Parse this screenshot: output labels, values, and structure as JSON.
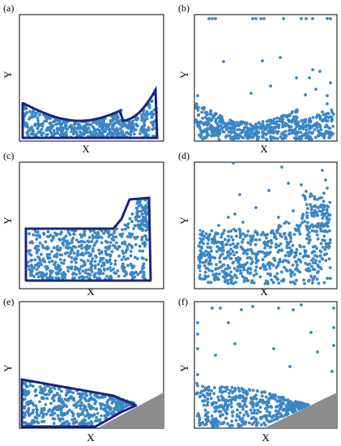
{
  "figure": {
    "panels": [
      {
        "label": "(a)",
        "xlabel": "X",
        "ylabel": "Y"
      },
      {
        "label": "(b)",
        "xlabel": "X",
        "ylabel": "Y"
      },
      {
        "label": "(c)",
        "xlabel": "X",
        "ylabel": "Y"
      },
      {
        "label": "(d)",
        "xlabel": "X",
        "ylabel": "Y"
      },
      {
        "label": "(e)",
        "xlabel": "X",
        "ylabel": "Y"
      },
      {
        "label": "(f)",
        "xlabel": "X",
        "ylabel": "Y"
      }
    ]
  },
  "chart_data": [
    {
      "type": "scatter",
      "title": "",
      "label": "(a)",
      "xlabel": "X",
      "ylabel": "Y",
      "xlim": [
        0,
        1
      ],
      "ylim": [
        0,
        1
      ],
      "description_free": true,
      "scene": "sloshing",
      "colors": {
        "fluid": "#3b86c4",
        "boundary": "#1a237e"
      }
    },
    {
      "type": "scatter",
      "title": "",
      "label": "(b)",
      "xlabel": "X",
      "ylabel": "Y",
      "xlim": [
        0,
        1
      ],
      "ylim": [
        0,
        1
      ],
      "scene": "sloshing_splash",
      "colors": {
        "fluid": "#3b86c4"
      }
    },
    {
      "type": "scatter",
      "title": "",
      "label": "(c)",
      "xlabel": "X",
      "ylabel": "Y",
      "xlim": [
        0,
        1
      ],
      "ylim": [
        0,
        1
      ],
      "scene": "wall_impact",
      "colors": {
        "fluid": "#3b86c4",
        "boundary": "#1a237e"
      }
    },
    {
      "type": "scatter",
      "title": "",
      "label": "(d)",
      "xlabel": "X",
      "ylabel": "Y",
      "xlim": [
        0,
        1
      ],
      "ylim": [
        0,
        1
      ],
      "scene": "wall_impact_splash",
      "colors": {
        "fluid": "#3b86c4"
      }
    },
    {
      "type": "scatter",
      "title": "",
      "label": "(e)",
      "xlabel": "X",
      "ylabel": "Y",
      "xlim": [
        0,
        1
      ],
      "ylim": [
        0,
        1
      ],
      "scene": "wedge",
      "colors": {
        "fluid": "#3b86c4",
        "boundary": "#1a237e",
        "obstacle": "#8c8c8c"
      }
    },
    {
      "type": "scatter",
      "title": "",
      "label": "(f)",
      "xlabel": "X",
      "ylabel": "Y",
      "xlim": [
        0,
        1
      ],
      "ylim": [
        0,
        1
      ],
      "scene": "wedge_splash",
      "colors": {
        "fluid": "#3b86c4",
        "obstacle": "#8c8c8c"
      }
    }
  ]
}
